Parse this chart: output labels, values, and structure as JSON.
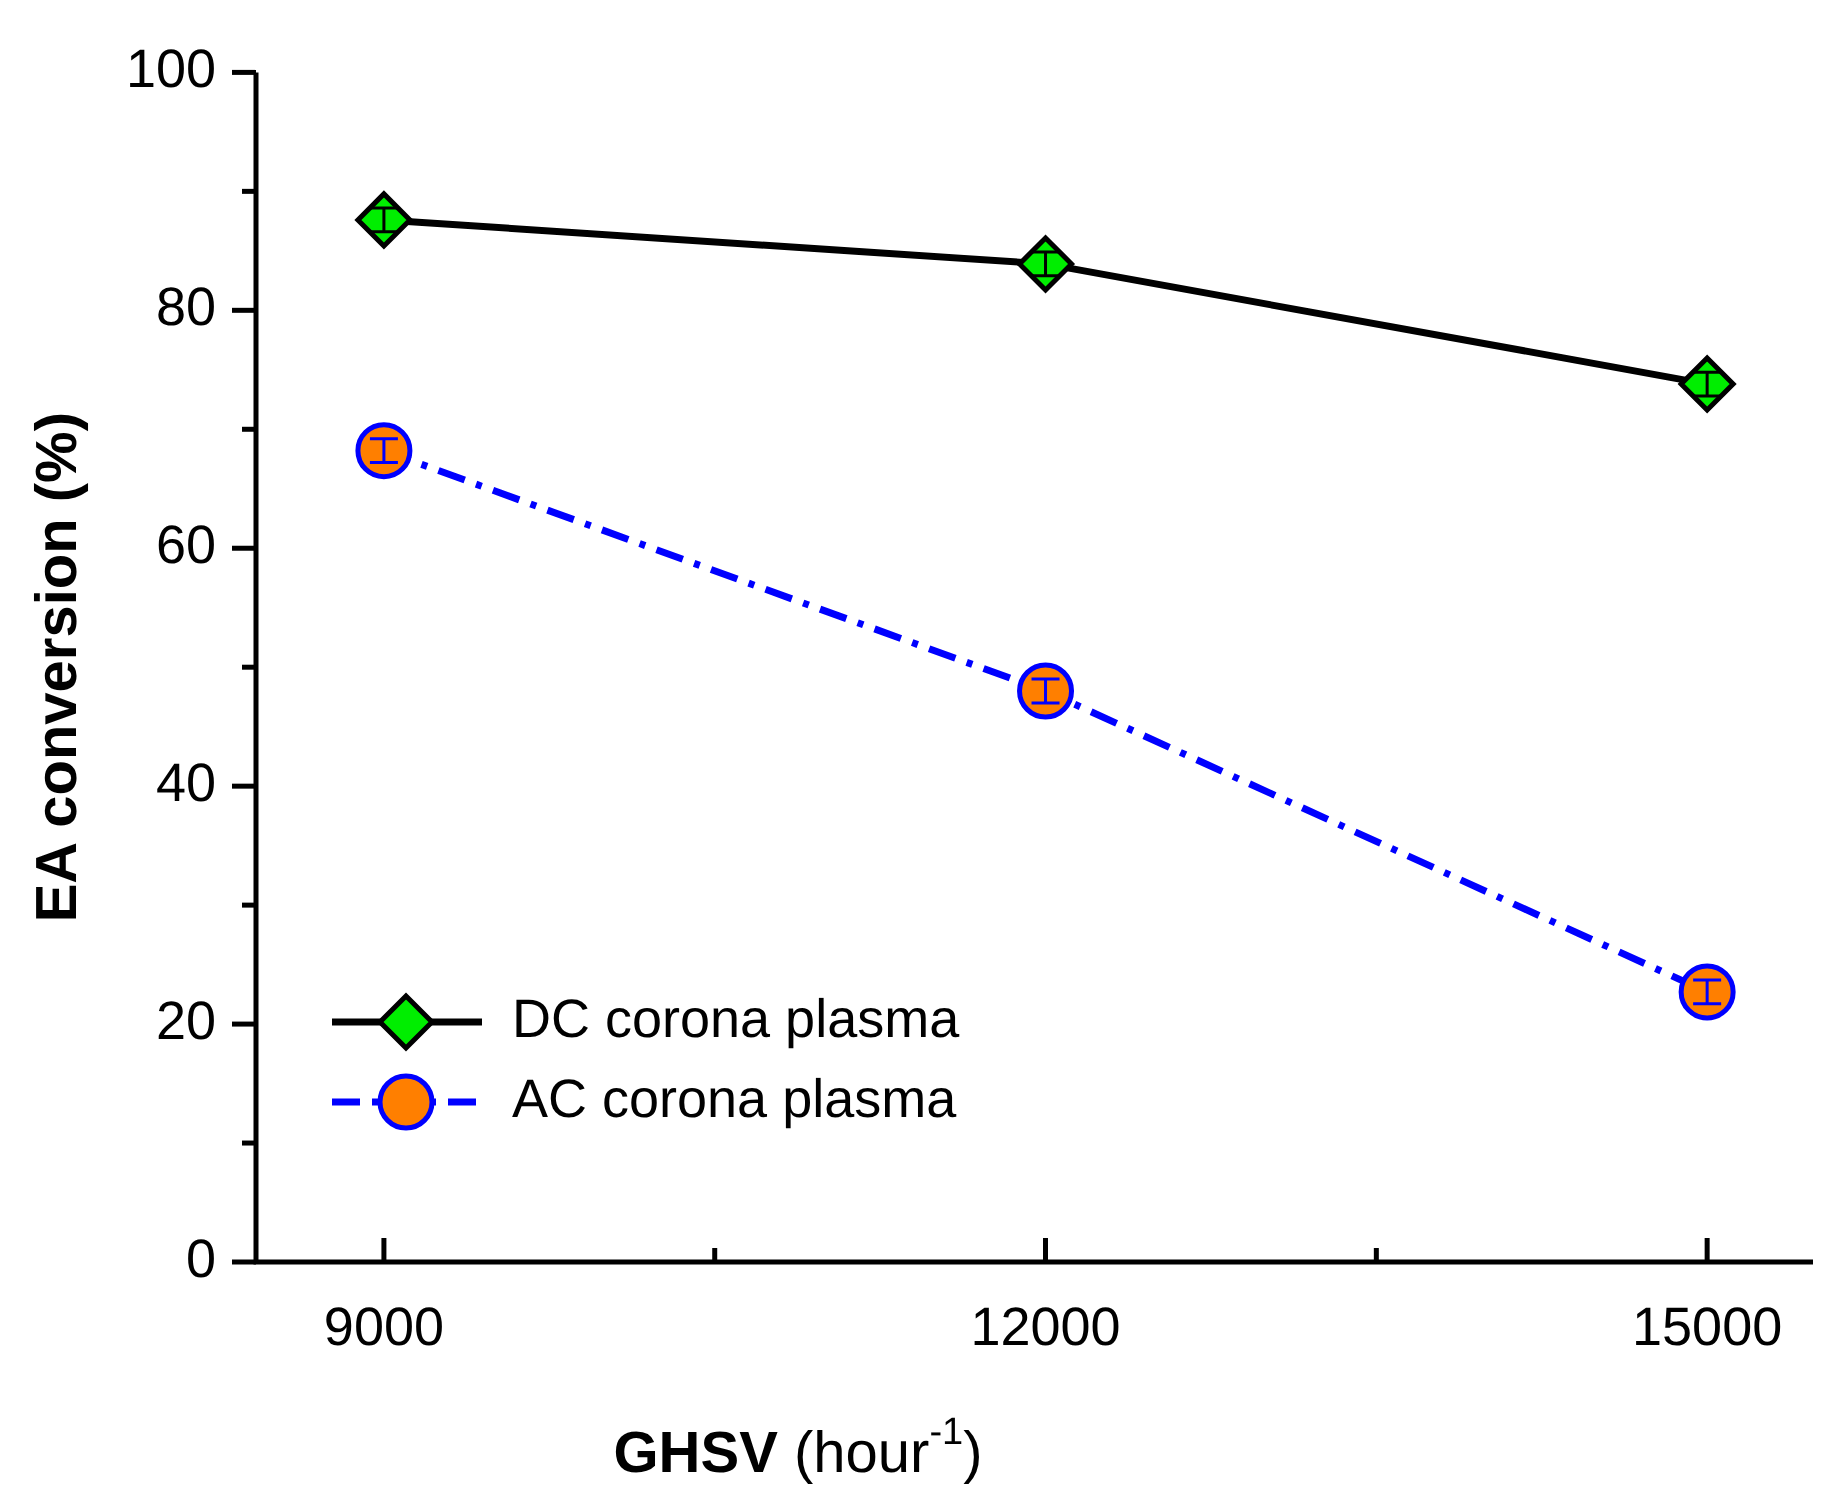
{
  "chart_data": {
    "type": "line",
    "xlabel": "GHSV (hour$^{-1}$)",
    "ylabel": "EA conversion (%)",
    "x": [
      9000,
      12000,
      15000
    ],
    "series": [
      {
        "name": "DC corona plasma",
        "color": "#000000",
        "colors": [
          "#00ee00",
          "#00ee00",
          "#00ee00"
        ],
        "marker": "diamond",
        "line_style": "solid",
        "values": [
          87.6,
          83.9,
          73.8
        ],
        "errors": [
          1,
          1,
          1
        ]
      },
      {
        "name": "AC corona plasma",
        "color": "#0000ff",
        "colors": [
          "#ff7f00",
          "#ff7f00",
          "#ff7f00"
        ],
        "marker": "circle",
        "line_style": "dashed",
        "values": [
          68.2,
          48.0,
          22.7
        ],
        "errors": [
          1,
          1,
          1
        ]
      }
    ],
    "xlim": [
      8420,
      15480
    ],
    "xticks": [
      9000,
      {
        "value": 10500,
        "label": null
      },
      12000,
      {
        "value": 13500,
        "label": null
      },
      15000
    ],
    "ylim": [
      0,
      100
    ],
    "yticks": [
      0,
      {
        "value": 10,
        "label": null
      },
      20,
      {
        "value": 30,
        "label": null
      },
      40,
      {
        "value": 50,
        "label": null
      },
      60,
      {
        "value": 70,
        "label": null
      },
      80,
      {
        "value": 90,
        "label": null
      },
      100
    ],
    "grid": false,
    "legend": "bottom left"
  }
}
